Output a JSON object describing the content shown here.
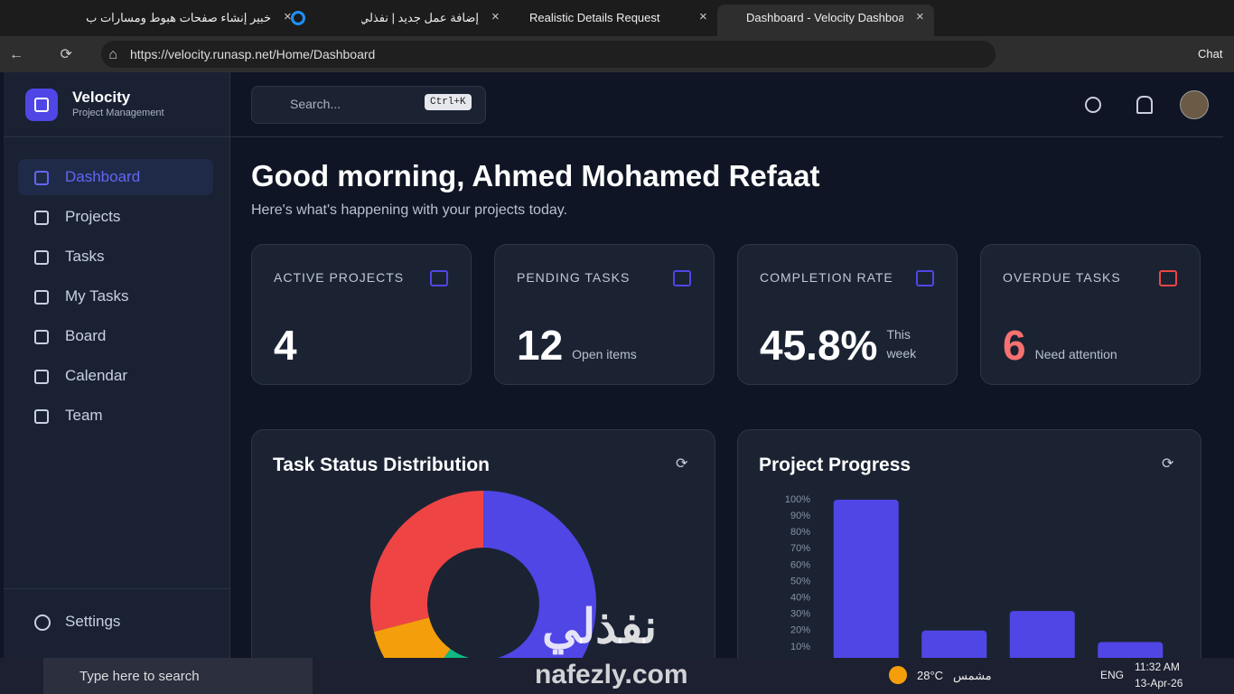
{
  "browser": {
    "tabs": [
      "خبير إنشاء صفحات هبوط ومسارات ب",
      "إضافة عمل جديد | نفذلي",
      "Realistic Details Request",
      "Dashboard - Velocity Dashboard"
    ],
    "url": "https://velocity.runasp.net/Home/Dashboard",
    "chat": "Chat"
  },
  "sidebar": {
    "brand": "Velocity",
    "tagline": "Project Management",
    "nav": [
      "Dashboard",
      "Projects",
      "Tasks",
      "My Tasks",
      "Board",
      "Calendar",
      "Team"
    ],
    "settings": "Settings"
  },
  "topbar": {
    "search": "Search...",
    "shortcut": "Ctrl+K"
  },
  "greeting": {
    "title": "Good morning, Ahmed Mohamed Refaat",
    "subtitle": "Here's what's happening with your projects today."
  },
  "stats": [
    {
      "label": "ACTIVE PROJECTS",
      "value": "4"
    },
    {
      "label": "PENDING TASKS",
      "value": "12",
      "note": "Open items"
    },
    {
      "label": "COMPLETION RATE",
      "value": "45.8%",
      "note": "This week"
    },
    {
      "label": "OVERDUE TASKS",
      "value": "6",
      "note": "Need attention"
    }
  ],
  "chart_data": [
    {
      "type": "pie",
      "title": "Task Status Distribution",
      "categories": [
        null,
        null,
        null,
        null
      ],
      "values": [
        50,
        10,
        11,
        29
      ],
      "colors": [
        "#4f46e5",
        "#10b981",
        "#f59e0b",
        "#ef4444"
      ]
    },
    {
      "type": "bar",
      "title": "Project Progress",
      "categories": [
        null,
        null,
        null,
        null
      ],
      "values": [
        100,
        20,
        32,
        13
      ],
      "color": "#4f46e5",
      "ylim": [
        0,
        100
      ],
      "yticks": [
        {
          "value": 10,
          "label": "10%"
        },
        {
          "value": 20,
          "label": "20%"
        },
        {
          "value": 30,
          "label": "30%"
        },
        {
          "value": 40,
          "label": "40%"
        },
        {
          "value": 50,
          "label": "50%"
        },
        {
          "value": 60,
          "label": "60%"
        },
        {
          "value": 70,
          "label": "70%"
        },
        {
          "value": 80,
          "label": "80%"
        },
        {
          "value": 90,
          "label": "90%"
        },
        {
          "value": 100,
          "label": "100%"
        }
      ]
    }
  ],
  "taskbar": {
    "search": "Type here to search",
    "temperature": "28°C",
    "weather": "مشمس",
    "language": "ENG",
    "time": "11:32 AM",
    "date": "13-Apr-26"
  },
  "watermark": {
    "arabic": "نفذلي",
    "latin": "nafezly.com"
  }
}
